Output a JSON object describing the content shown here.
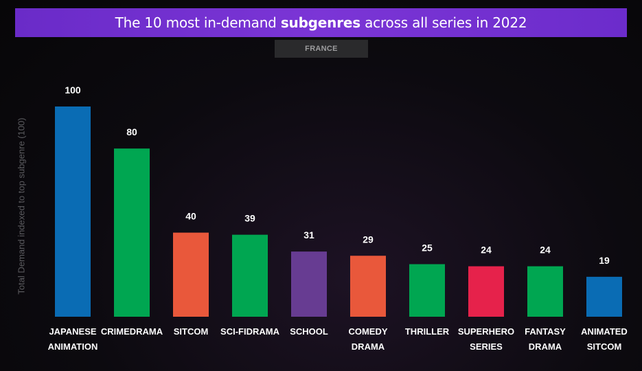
{
  "title": {
    "part1": "The 10 most in-demand ",
    "bold": "subgenres",
    "part2": " across all series in 2022"
  },
  "country_tab": "FRANCE",
  "chart_data": {
    "type": "bar",
    "title": "The 10 most in-demand subgenres across all series in 2022",
    "subtitle": "FRANCE",
    "ylabel": "Total Demand indexed to top subgenre (100)",
    "xlabel": "",
    "ylim": [
      0,
      100
    ],
    "grid": false,
    "categories": [
      [
        "JAPANESE",
        "ANIMATION"
      ],
      [
        "CRIMEDRAMA"
      ],
      [
        "SITCOM"
      ],
      [
        "SCI-FIDRAMA"
      ],
      [
        "SCHOOL"
      ],
      [
        "COMEDY",
        "DRAMA"
      ],
      [
        "THRILLER"
      ],
      [
        "SUPERHERO",
        "SERIES"
      ],
      [
        "FANTASY",
        "DRAMA"
      ],
      [
        "ANIMATED",
        "SITCOM"
      ]
    ],
    "values": [
      100,
      80,
      40,
      39,
      31,
      29,
      25,
      24,
      24,
      19
    ],
    "value_labels": [
      "100",
      "80",
      "40",
      "39",
      "31",
      "29",
      "25",
      "24",
      "24",
      "19"
    ],
    "colors": [
      "#0a6cb4",
      "#00a651",
      "#e9583b",
      "#00a651",
      "#673c92",
      "#e9583b",
      "#00a651",
      "#e6224b",
      "#00a651",
      "#0a6cb4"
    ]
  }
}
